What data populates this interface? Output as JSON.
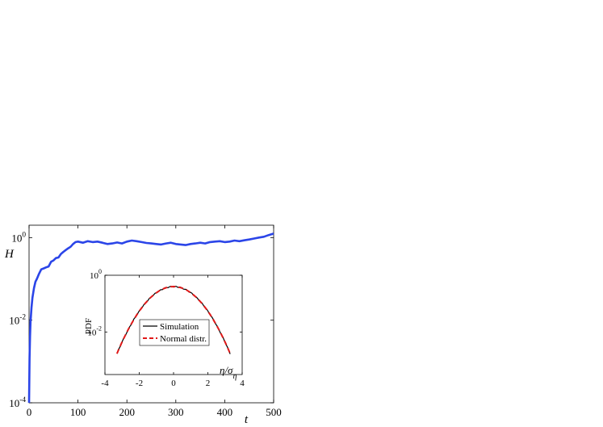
{
  "chart_data": [
    {
      "type": "line",
      "xlabel": "t",
      "ylabel": "H",
      "xlim": [
        0,
        500
      ],
      "ylim_log10": [
        -4,
        0.3
      ],
      "yscale": "log",
      "x_ticks": [
        "0",
        "100",
        "200",
        "300",
        "400",
        "500"
      ],
      "y_ticks": [
        {
          "base": "10",
          "exp": "0"
        },
        {
          "base": "10",
          "exp": "-2"
        },
        {
          "base": "10",
          "exp": "-4"
        }
      ],
      "series": [
        {
          "color": "#2b45e8",
          "x": [
            0,
            1,
            2,
            3,
            5,
            7,
            10,
            13,
            16,
            20,
            25,
            30,
            35,
            40,
            45,
            50,
            55,
            60,
            65,
            70,
            75,
            80,
            85,
            90,
            95,
            100,
            110,
            120,
            130,
            140,
            150,
            160,
            170,
            180,
            190,
            200,
            210,
            220,
            230,
            240,
            250,
            260,
            270,
            280,
            290,
            300,
            310,
            320,
            330,
            340,
            350,
            360,
            370,
            380,
            390,
            400,
            410,
            420,
            430,
            440,
            450,
            460,
            470,
            480,
            490,
            500
          ],
          "y": [
            0.0001,
            0.0012,
            0.004,
            0.009,
            0.02,
            0.035,
            0.06,
            0.085,
            0.1,
            0.13,
            0.17,
            0.18,
            0.19,
            0.2,
            0.26,
            0.28,
            0.32,
            0.33,
            0.4,
            0.45,
            0.5,
            0.55,
            0.6,
            0.7,
            0.78,
            0.8,
            0.75,
            0.82,
            0.78,
            0.8,
            0.75,
            0.7,
            0.72,
            0.76,
            0.72,
            0.8,
            0.85,
            0.82,
            0.78,
            0.74,
            0.72,
            0.7,
            0.68,
            0.72,
            0.75,
            0.7,
            0.68,
            0.66,
            0.7,
            0.72,
            0.75,
            0.72,
            0.78,
            0.8,
            0.82,
            0.78,
            0.8,
            0.85,
            0.82,
            0.86,
            0.9,
            0.95,
            1.0,
            1.05,
            1.15,
            1.25
          ]
        }
      ]
    },
    {
      "type": "line",
      "xlabel": "η/σ",
      "xlabel_sub": "η",
      "ylabel": "PDF",
      "xlim": [
        -4,
        4
      ],
      "ylim_log10": [
        -3.5,
        0
      ],
      "yscale": "log",
      "x_ticks": [
        "-4",
        "-2",
        "0",
        "2",
        "4"
      ],
      "y_ticks": [
        {
          "base": "10",
          "exp": "0"
        },
        {
          "base": "10",
          "exp": "-2"
        }
      ],
      "legend": {
        "placement": "center",
        "entries": [
          {
            "label": "Simulation",
            "color": "#000000",
            "style": "solid"
          },
          {
            "label": "Normal distr.",
            "color": "#e01818",
            "style": "dashed"
          }
        ]
      },
      "series": [
        {
          "name": "Simulation",
          "color": "#000000",
          "x_range": [
            -3.3,
            3.3
          ],
          "mean": 0,
          "std": 1
        },
        {
          "name": "Normal distr.",
          "color": "#e01818",
          "x_range": [
            -3.3,
            3.3
          ],
          "mean": 0,
          "std": 1
        }
      ]
    }
  ]
}
